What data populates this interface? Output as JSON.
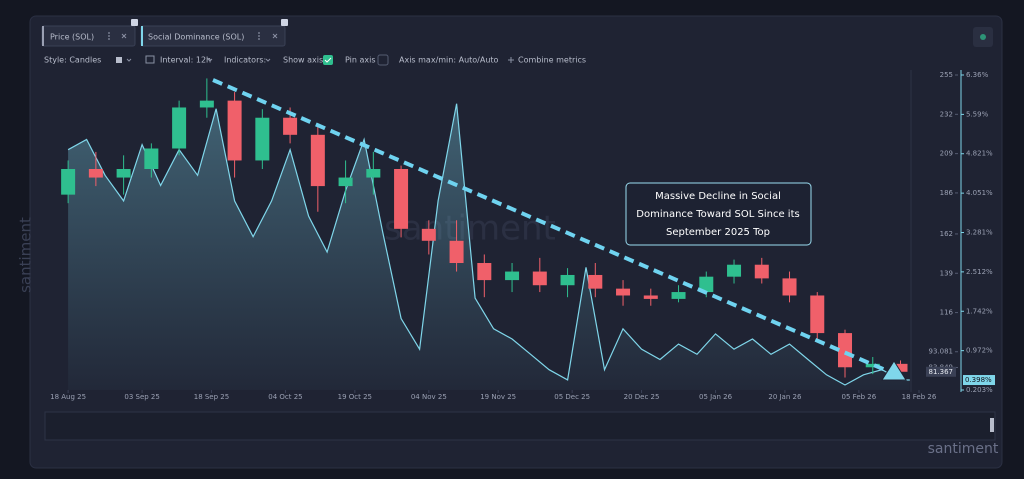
{
  "toolbar": {
    "style": "Style: Candles",
    "interval": "Interval: 12h",
    "indicators": "Indicators:",
    "show_axis": "Show axis",
    "pin_axis": "Pin axis",
    "axis_minmax": "Axis max/min: Auto/Auto",
    "combine": "Combine metrics"
  },
  "watermark": "santiment",
  "chart_data": {
    "type": "candlestick",
    "xlim": [
      "2025-08-13",
      "2026-02-18"
    ],
    "xticks": [
      {
        "value": "2025-08-18",
        "label": "18 Aug 25"
      },
      {
        "value": "2025-09-03",
        "label": "03 Sep 25"
      },
      {
        "value": "2025-09-18",
        "label": "18 Sep 25"
      },
      {
        "value": "2025-10-04",
        "label": "04 Oct 25"
      },
      {
        "value": "2025-10-19",
        "label": "19 Oct 25"
      },
      {
        "value": "2025-11-04",
        "label": "04 Nov 25"
      },
      {
        "value": "2025-11-19",
        "label": "19 Nov 25"
      },
      {
        "value": "2025-12-05",
        "label": "05 Dec 25"
      },
      {
        "value": "2025-12-20",
        "label": "20 Dec 25"
      },
      {
        "value": "2026-01-05",
        "label": "05 Jan 26"
      },
      {
        "value": "2026-01-20",
        "label": "20 Jan 26"
      },
      {
        "value": "2026-02-05",
        "label": "05 Feb 26"
      },
      {
        "value": "2026-02-18",
        "label": "18 Feb 26"
      }
    ],
    "ylim": [
      70.7,
      255
    ],
    "yticks": [
      255,
      232,
      209,
      186,
      162,
      139,
      116,
      93.081,
      83.849
    ],
    "y2lim": [
      0.203,
      6.36
    ],
    "y2ticks": [
      {
        "value": 6.36,
        "label": "6.36%"
      },
      {
        "value": 5.59,
        "label": "5.59%"
      },
      {
        "value": 4.821,
        "label": "4.821%"
      },
      {
        "value": 4.051,
        "label": "4.051%"
      },
      {
        "value": 3.281,
        "label": "3.281%"
      },
      {
        "value": 2.512,
        "label": "2.512%"
      },
      {
        "value": 1.742,
        "label": "1.742%"
      },
      {
        "value": 0.972,
        "label": "0.972%"
      },
      {
        "value": 0.203,
        "label": "0.203%"
      }
    ],
    "series": [
      {
        "name": "Price (SOL)",
        "type": "candlestick",
        "color_up": "#2fbf8f",
        "color_down": "#f0606a",
        "x": [
          "2025-08-18",
          "2025-08-24",
          "2025-08-30",
          "2025-09-05",
          "2025-09-11",
          "2025-09-17",
          "2025-09-23",
          "2025-09-29",
          "2025-10-05",
          "2025-10-11",
          "2025-10-17",
          "2025-10-23",
          "2025-10-29",
          "2025-11-04",
          "2025-11-10",
          "2025-11-16",
          "2025-11-22",
          "2025-11-28",
          "2025-12-04",
          "2025-12-10",
          "2025-12-16",
          "2025-12-22",
          "2025-12-28",
          "2026-01-03",
          "2026-01-09",
          "2026-01-15",
          "2026-01-21",
          "2026-01-27",
          "2026-02-02",
          "2026-02-08",
          "2026-02-14"
        ],
        "open": [
          185,
          200,
          195,
          200,
          212,
          236,
          240,
          205,
          230,
          220,
          190,
          195,
          200,
          165,
          158,
          145,
          135,
          140,
          132,
          138,
          130,
          126,
          124,
          128,
          137,
          144,
          136,
          126,
          104,
          84,
          86
        ],
        "high": [
          205,
          210,
          208,
          215,
          240,
          253,
          245,
          235,
          236,
          225,
          205,
          210,
          202,
          170,
          170,
          150,
          145,
          148,
          142,
          145,
          135,
          130,
          132,
          140,
          147,
          148,
          140,
          128,
          106,
          90,
          88
        ],
        "low": [
          180,
          190,
          185,
          195,
          208,
          230,
          195,
          200,
          215,
          175,
          180,
          185,
          160,
          150,
          140,
          125,
          128,
          128,
          125,
          125,
          120,
          120,
          122,
          125,
          133,
          133,
          122,
          100,
          78,
          80,
          80
        ],
        "close": [
          200,
          195,
          200,
          212,
          236,
          240,
          205,
          230,
          220,
          190,
          195,
          200,
          165,
          158,
          145,
          135,
          140,
          132,
          138,
          130,
          126,
          124,
          128,
          137,
          144,
          136,
          126,
          104,
          84,
          86,
          81.367
        ]
      },
      {
        "name": "Social Dominance (SOL)",
        "type": "line",
        "axis": "y2",
        "color": "#7fd6ea",
        "x": [
          "2025-08-18",
          "2025-08-22",
          "2025-08-26",
          "2025-08-30",
          "2025-09-03",
          "2025-09-07",
          "2025-09-11",
          "2025-09-15",
          "2025-09-19",
          "2025-09-23",
          "2025-09-27",
          "2025-10-01",
          "2025-10-05",
          "2025-10-09",
          "2025-10-13",
          "2025-10-17",
          "2025-10-21",
          "2025-10-25",
          "2025-10-29",
          "2025-11-02",
          "2025-11-06",
          "2025-11-10",
          "2025-11-14",
          "2025-11-18",
          "2025-11-22",
          "2025-11-26",
          "2025-11-30",
          "2025-12-04",
          "2025-12-08",
          "2025-12-12",
          "2025-12-16",
          "2025-12-20",
          "2025-12-24",
          "2025-12-28",
          "2026-01-01",
          "2026-01-05",
          "2026-01-09",
          "2026-01-13",
          "2026-01-17",
          "2026-01-21",
          "2026-01-25",
          "2026-01-29",
          "2026-02-02",
          "2026-02-06",
          "2026-02-10",
          "2026-02-14",
          "2026-02-16"
        ],
        "values": [
          4.9,
          5.1,
          4.4,
          3.9,
          5.0,
          4.2,
          4.9,
          4.4,
          5.7,
          3.9,
          3.2,
          3.9,
          4.9,
          3.6,
          2.9,
          4.1,
          5.1,
          3.3,
          1.6,
          1.0,
          3.9,
          5.8,
          2.0,
          1.4,
          1.2,
          0.9,
          0.6,
          0.4,
          2.6,
          0.6,
          1.4,
          1.0,
          0.8,
          1.1,
          0.9,
          1.3,
          1.0,
          1.2,
          0.9,
          1.1,
          0.8,
          0.5,
          0.3,
          0.5,
          0.6,
          0.4,
          0.398
        ],
        "value_labels": [
          null,
          null,
          null,
          null,
          null,
          null,
          null,
          null,
          null,
          null,
          null,
          null,
          null,
          null,
          null,
          null,
          null,
          null,
          null,
          null,
          null,
          null,
          null,
          null,
          null,
          null,
          null,
          null,
          null,
          null,
          null,
          null,
          null,
          null,
          null,
          null,
          null,
          null,
          null,
          null,
          null,
          null,
          null,
          null,
          null,
          null,
          "0.398%"
        ]
      }
    ],
    "annotation": {
      "lines": [
        "Massive Decline in Social",
        "Dominance Toward SOL Since its",
        "September 2025 Top"
      ]
    }
  }
}
